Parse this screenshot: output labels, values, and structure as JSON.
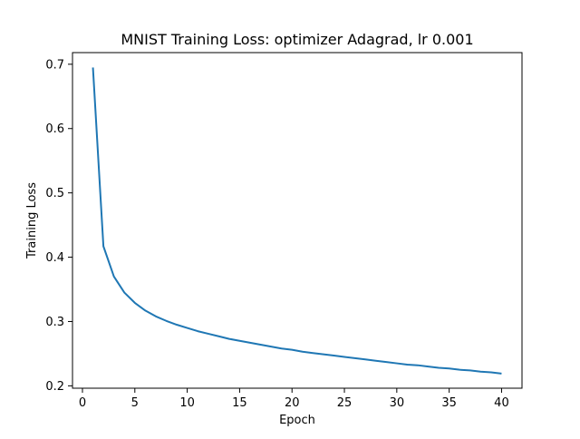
{
  "chart_data": {
    "type": "line",
    "title": "MNIST Training Loss: optimizer Adagrad, lr 0.001",
    "xlabel": "Epoch",
    "ylabel": "Training Loss",
    "xlim": [
      -0.95,
      41.95
    ],
    "ylim": [
      0.1963,
      0.7181
    ],
    "xticks": [
      0,
      5,
      10,
      15,
      20,
      25,
      30,
      35,
      40
    ],
    "yticks": [
      0.2,
      0.3,
      0.4,
      0.5,
      0.6,
      0.7
    ],
    "xtick_labels": [
      "0",
      "5",
      "10",
      "15",
      "20",
      "25",
      "30",
      "35",
      "40"
    ],
    "ytick_labels": [
      "0.2",
      "0.3",
      "0.4",
      "0.5",
      "0.6",
      "0.7"
    ],
    "grid": false,
    "legend": "none",
    "series": [
      {
        "color": "#1f77b4",
        "x": [
          1,
          2,
          3,
          4,
          5,
          6,
          7,
          8,
          9,
          10,
          11,
          12,
          13,
          14,
          15,
          16,
          17,
          18,
          19,
          20,
          21,
          22,
          23,
          24,
          25,
          26,
          27,
          28,
          29,
          30,
          31,
          32,
          33,
          34,
          35,
          36,
          37,
          38,
          39,
          40
        ],
        "y": [
          0.695,
          0.417,
          0.37,
          0.345,
          0.329,
          0.317,
          0.308,
          0.301,
          0.295,
          0.29,
          0.285,
          0.281,
          0.277,
          0.273,
          0.27,
          0.267,
          0.264,
          0.261,
          0.258,
          0.256,
          0.253,
          0.251,
          0.249,
          0.247,
          0.245,
          0.243,
          0.241,
          0.239,
          0.237,
          0.235,
          0.233,
          0.232,
          0.23,
          0.228,
          0.227,
          0.225,
          0.224,
          0.222,
          0.221,
          0.219
        ]
      }
    ]
  }
}
